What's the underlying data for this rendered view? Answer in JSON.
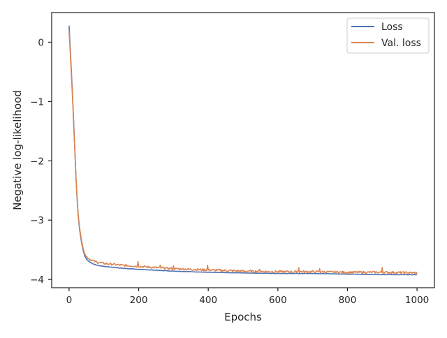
{
  "chart_data": {
    "type": "line",
    "title": "",
    "xlabel": "Epochs",
    "ylabel": "Negative log-likelihood",
    "xlim": [
      -50,
      1050
    ],
    "ylim": [
      -4.14,
      0.5
    ],
    "xticks": [
      0,
      200,
      400,
      600,
      800,
      1000
    ],
    "xtick_labels": [
      "0",
      "200",
      "400",
      "600",
      "800",
      "1000"
    ],
    "yticks": [
      0,
      -1,
      -2,
      -3,
      -4
    ],
    "ytick_labels": [
      "0",
      "−1",
      "−2",
      "−3",
      "−4"
    ],
    "grid": false,
    "legend_position": "top-right",
    "series": [
      {
        "name": "Loss",
        "color": "#4c72b0",
        "points": [
          [
            0,
            0.28
          ],
          [
            5,
            -0.3
          ],
          [
            10,
            -0.9
          ],
          [
            15,
            -1.6
          ],
          [
            20,
            -2.3
          ],
          [
            25,
            -2.85
          ],
          [
            30,
            -3.15
          ],
          [
            35,
            -3.35
          ],
          [
            40,
            -3.5
          ],
          [
            45,
            -3.6
          ],
          [
            50,
            -3.66
          ],
          [
            60,
            -3.71
          ],
          [
            70,
            -3.74
          ],
          [
            80,
            -3.76
          ],
          [
            100,
            -3.78
          ],
          [
            150,
            -3.81
          ],
          [
            200,
            -3.83
          ],
          [
            300,
            -3.86
          ],
          [
            400,
            -3.88
          ],
          [
            500,
            -3.89
          ],
          [
            600,
            -3.9
          ],
          [
            700,
            -3.9
          ],
          [
            800,
            -3.91
          ],
          [
            900,
            -3.92
          ],
          [
            1000,
            -3.92
          ]
        ]
      },
      {
        "name": "Val. loss",
        "color": "#dd8452",
        "points": [
          [
            0,
            0.18
          ],
          [
            5,
            -0.35
          ],
          [
            10,
            -0.95
          ],
          [
            15,
            -1.62
          ],
          [
            20,
            -2.3
          ],
          [
            25,
            -2.83
          ],
          [
            30,
            -3.12
          ],
          [
            35,
            -3.32
          ],
          [
            40,
            -3.47
          ],
          [
            45,
            -3.57
          ],
          [
            50,
            -3.62
          ],
          [
            60,
            -3.66
          ],
          [
            70,
            -3.69
          ],
          [
            80,
            -3.71
          ],
          [
            100,
            -3.73
          ],
          [
            150,
            -3.76
          ],
          [
            200,
            -3.78
          ],
          [
            300,
            -3.82
          ],
          [
            400,
            -3.84
          ],
          [
            500,
            -3.86
          ],
          [
            600,
            -3.87
          ],
          [
            700,
            -3.87
          ],
          [
            800,
            -3.88
          ],
          [
            900,
            -3.88
          ],
          [
            1000,
            -3.89
          ]
        ],
        "spikes": [
          [
            198,
            -3.7
          ],
          [
            262,
            -3.76
          ],
          [
            300,
            -3.77
          ],
          [
            397,
            -3.76
          ],
          [
            548,
            -3.83
          ],
          [
            660,
            -3.8
          ],
          [
            720,
            -3.82
          ],
          [
            900,
            -3.8
          ]
        ]
      }
    ]
  }
}
